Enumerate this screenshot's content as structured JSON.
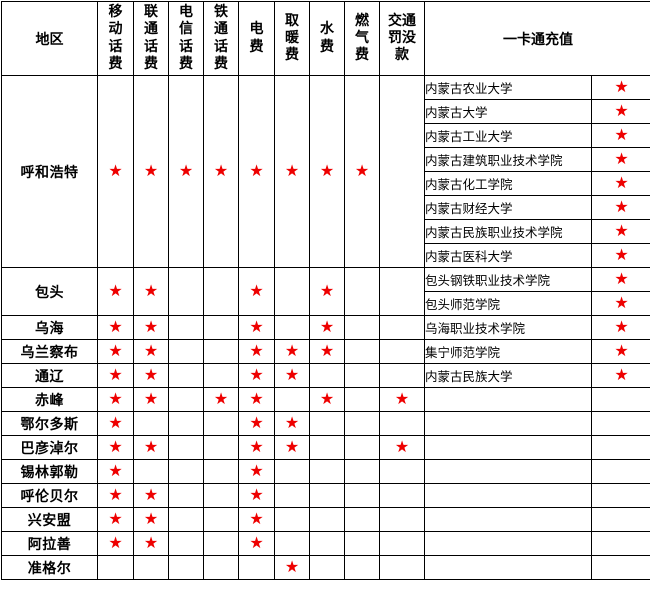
{
  "table": {
    "region_header": "地区",
    "service_columns": [
      "移动话费",
      "联通话费",
      "电信话费",
      "铁通话费",
      "电费",
      "取暖费",
      "水费",
      "燃气费",
      "交通罚没款"
    ],
    "card_header": "一卡通充值",
    "star_glyph": "★",
    "star_color": "#ee0000",
    "regions": [
      {
        "name": "呼和浩特",
        "services": [
          1,
          1,
          1,
          1,
          1,
          1,
          1,
          1,
          0
        ],
        "card_items": [
          {
            "name": "内蒙古农业大学",
            "star": true
          },
          {
            "name": "内蒙古大学",
            "star": true
          },
          {
            "name": "内蒙古工业大学",
            "star": true
          },
          {
            "name": "内蒙古建筑职业技术学院",
            "star": true
          },
          {
            "name": "内蒙古化工学院",
            "star": true
          },
          {
            "name": "内蒙古财经大学",
            "star": true
          },
          {
            "name": "内蒙古民族职业技术学院",
            "star": true
          },
          {
            "name": "内蒙古医科大学",
            "star": true
          }
        ]
      },
      {
        "name": "包头",
        "services": [
          1,
          1,
          0,
          0,
          1,
          0,
          1,
          0,
          0
        ],
        "card_items": [
          {
            "name": "包头钢铁职业技术学院",
            "star": true
          },
          {
            "name": "包头师范学院",
            "star": true
          }
        ]
      },
      {
        "name": "乌海",
        "services": [
          1,
          1,
          0,
          0,
          1,
          0,
          1,
          0,
          0
        ],
        "card_items": [
          {
            "name": "乌海职业技术学院",
            "star": true
          }
        ]
      },
      {
        "name": "乌兰察布",
        "services": [
          1,
          1,
          0,
          0,
          1,
          1,
          1,
          0,
          0
        ],
        "card_items": [
          {
            "name": "集宁师范学院",
            "star": true
          }
        ]
      },
      {
        "name": "通辽",
        "services": [
          1,
          1,
          0,
          0,
          1,
          1,
          0,
          0,
          0
        ],
        "card_items": [
          {
            "name": "内蒙古民族大学",
            "star": true
          }
        ]
      },
      {
        "name": "赤峰",
        "services": [
          1,
          1,
          0,
          1,
          1,
          0,
          1,
          0,
          1
        ],
        "card_items": []
      },
      {
        "name": "鄂尔多斯",
        "services": [
          1,
          0,
          0,
          0,
          1,
          1,
          0,
          0,
          0
        ],
        "card_items": []
      },
      {
        "name": "巴彦淖尔",
        "services": [
          1,
          1,
          0,
          0,
          1,
          1,
          0,
          0,
          1
        ],
        "card_items": []
      },
      {
        "name": "锡林郭勒",
        "services": [
          1,
          0,
          0,
          0,
          1,
          0,
          0,
          0,
          0
        ],
        "card_items": []
      },
      {
        "name": "呼伦贝尔",
        "services": [
          1,
          1,
          0,
          0,
          1,
          0,
          0,
          0,
          0
        ],
        "card_items": []
      },
      {
        "name": "兴安盟",
        "services": [
          1,
          1,
          0,
          0,
          1,
          0,
          0,
          0,
          0
        ],
        "card_items": []
      },
      {
        "name": "阿拉善",
        "services": [
          1,
          1,
          0,
          0,
          1,
          0,
          0,
          0,
          0
        ],
        "card_items": []
      },
      {
        "name": "准格尔",
        "services": [
          0,
          0,
          0,
          0,
          0,
          1,
          0,
          0,
          0
        ],
        "card_items": []
      }
    ]
  },
  "chart_data": {
    "type": "table",
    "columns": [
      "地区",
      "移动话费",
      "联通话费",
      "电信话费",
      "铁通话费",
      "电费",
      "取暖费",
      "水费",
      "燃气费",
      "交通罚没款",
      "一卡通充值"
    ],
    "marker": "★",
    "rows": [
      [
        "呼和浩特",
        1,
        1,
        1,
        1,
        1,
        1,
        1,
        1,
        0,
        "内蒙古农业大学; 内蒙古大学; 内蒙古工业大学; 内蒙古建筑职业技术学院; 内蒙古化工学院; 内蒙古财经大学; 内蒙古民族职业技术学院; 内蒙古医科大学"
      ],
      [
        "包头",
        1,
        1,
        0,
        0,
        1,
        0,
        1,
        0,
        0,
        "包头钢铁职业技术学院; 包头师范学院"
      ],
      [
        "乌海",
        1,
        1,
        0,
        0,
        1,
        0,
        1,
        0,
        0,
        "乌海职业技术学院"
      ],
      [
        "乌兰察布",
        1,
        1,
        0,
        0,
        1,
        1,
        1,
        0,
        0,
        "集宁师范学院"
      ],
      [
        "通辽",
        1,
        1,
        0,
        0,
        1,
        1,
        0,
        0,
        0,
        "内蒙古民族大学"
      ],
      [
        "赤峰",
        1,
        1,
        0,
        1,
        1,
        0,
        1,
        0,
        1,
        ""
      ],
      [
        "鄂尔多斯",
        1,
        0,
        0,
        0,
        1,
        1,
        0,
        0,
        0,
        ""
      ],
      [
        "巴彦淖尔",
        1,
        1,
        0,
        0,
        1,
        1,
        0,
        0,
        1,
        ""
      ],
      [
        "锡林郭勒",
        1,
        0,
        0,
        0,
        1,
        0,
        0,
        0,
        0,
        ""
      ],
      [
        "呼伦贝尔",
        1,
        1,
        0,
        0,
        1,
        0,
        0,
        0,
        0,
        ""
      ],
      [
        "兴安盟",
        1,
        1,
        0,
        0,
        1,
        0,
        0,
        0,
        0,
        ""
      ],
      [
        "阿拉善",
        1,
        1,
        0,
        0,
        1,
        0,
        0,
        0,
        0,
        ""
      ],
      [
        "准格尔",
        0,
        0,
        0,
        0,
        0,
        1,
        0,
        0,
        0,
        ""
      ]
    ]
  }
}
